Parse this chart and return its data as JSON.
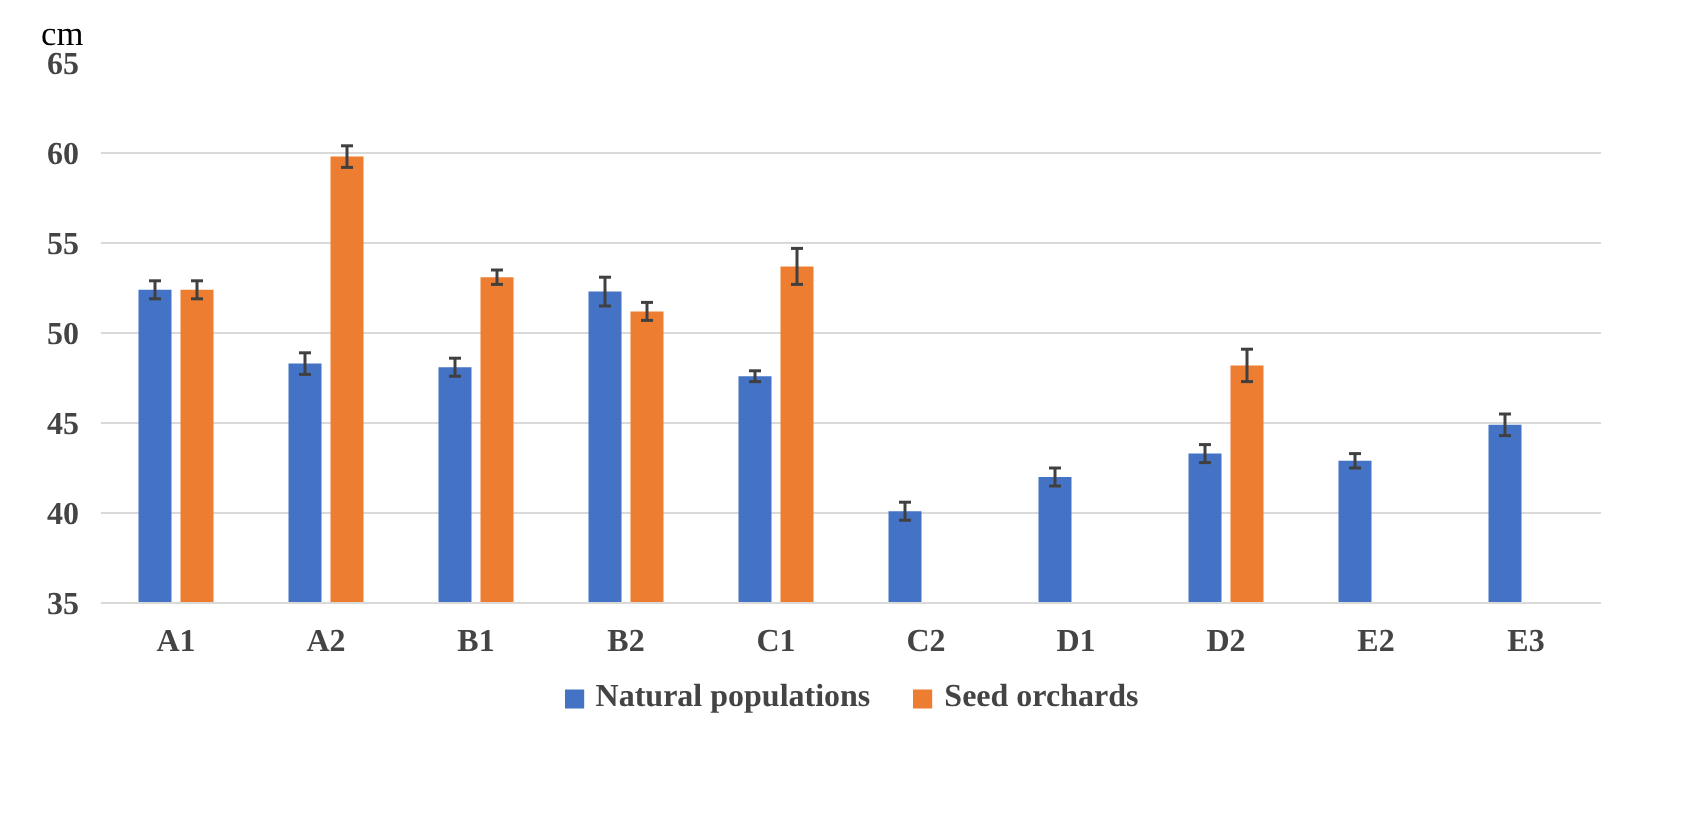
{
  "chart_data": {
    "type": "bar",
    "ylabel": "cm",
    "categories": [
      "A1",
      "A2",
      "B1",
      "B2",
      "C1",
      "C2",
      "D1",
      "D2",
      "E2",
      "E3"
    ],
    "series": [
      {
        "name": "Natural populations",
        "color": "#4472c4",
        "values": [
          52.4,
          48.3,
          48.1,
          52.3,
          47.6,
          40.1,
          42.0,
          43.3,
          42.9,
          44.9
        ],
        "errors": [
          0.5,
          0.6,
          0.5,
          0.8,
          0.3,
          0.5,
          0.5,
          0.5,
          0.4,
          0.6
        ]
      },
      {
        "name": "Seed orchards",
        "color": "#ed7d31",
        "values": [
          52.4,
          59.8,
          53.1,
          51.2,
          53.7,
          null,
          null,
          48.2,
          null,
          null
        ],
        "errors": [
          0.5,
          0.6,
          0.4,
          0.5,
          1.0,
          null,
          null,
          0.9,
          null,
          null
        ]
      }
    ],
    "ylim": [
      35,
      65
    ],
    "yticks": [
      35,
      40,
      45,
      50,
      55,
      60,
      65
    ],
    "grid": "y",
    "legend": "bottom"
  }
}
